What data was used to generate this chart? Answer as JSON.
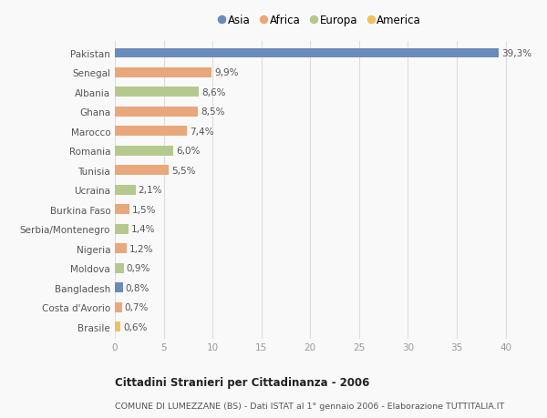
{
  "countries": [
    "Pakistan",
    "Senegal",
    "Albania",
    "Ghana",
    "Marocco",
    "Romania",
    "Tunisia",
    "Ucraina",
    "Burkina Faso",
    "Serbia/Montenegro",
    "Nigeria",
    "Moldova",
    "Bangladesh",
    "Costa d'Avorio",
    "Brasile"
  ],
  "values": [
    39.3,
    9.9,
    8.6,
    8.5,
    7.4,
    6.0,
    5.5,
    2.1,
    1.5,
    1.4,
    1.2,
    0.9,
    0.8,
    0.7,
    0.6
  ],
  "labels": [
    "39,3%",
    "9,9%",
    "8,6%",
    "8,5%",
    "7,4%",
    "6,0%",
    "5,5%",
    "2,1%",
    "1,5%",
    "1,4%",
    "1,2%",
    "0,9%",
    "0,8%",
    "0,7%",
    "0,6%"
  ],
  "continents": [
    "Asia",
    "Africa",
    "Europa",
    "Africa",
    "Africa",
    "Europa",
    "Africa",
    "Europa",
    "Africa",
    "Europa",
    "Africa",
    "Europa",
    "Asia",
    "Africa",
    "America"
  ],
  "continent_colors": {
    "Asia": "#6b8cba",
    "Africa": "#e8a87c",
    "Europa": "#b5c98e",
    "America": "#f0c060"
  },
  "legend_order": [
    "Asia",
    "Africa",
    "Europa",
    "America"
  ],
  "xlim": [
    0,
    42
  ],
  "xticks": [
    0,
    5,
    10,
    15,
    20,
    25,
    30,
    35,
    40
  ],
  "title_main": "Cittadini Stranieri per Cittadinanza - 2006",
  "title_sub": "COMUNE DI LUMEZZANE (BS) - Dati ISTAT al 1° gennaio 2006 - Elaborazione TUTTITALIA.IT",
  "bg_color": "#f9f9f9",
  "grid_color": "#dddddd",
  "bar_height": 0.5,
  "label_fontsize": 7.5,
  "ytick_fontsize": 7.5,
  "xtick_fontsize": 7.5
}
